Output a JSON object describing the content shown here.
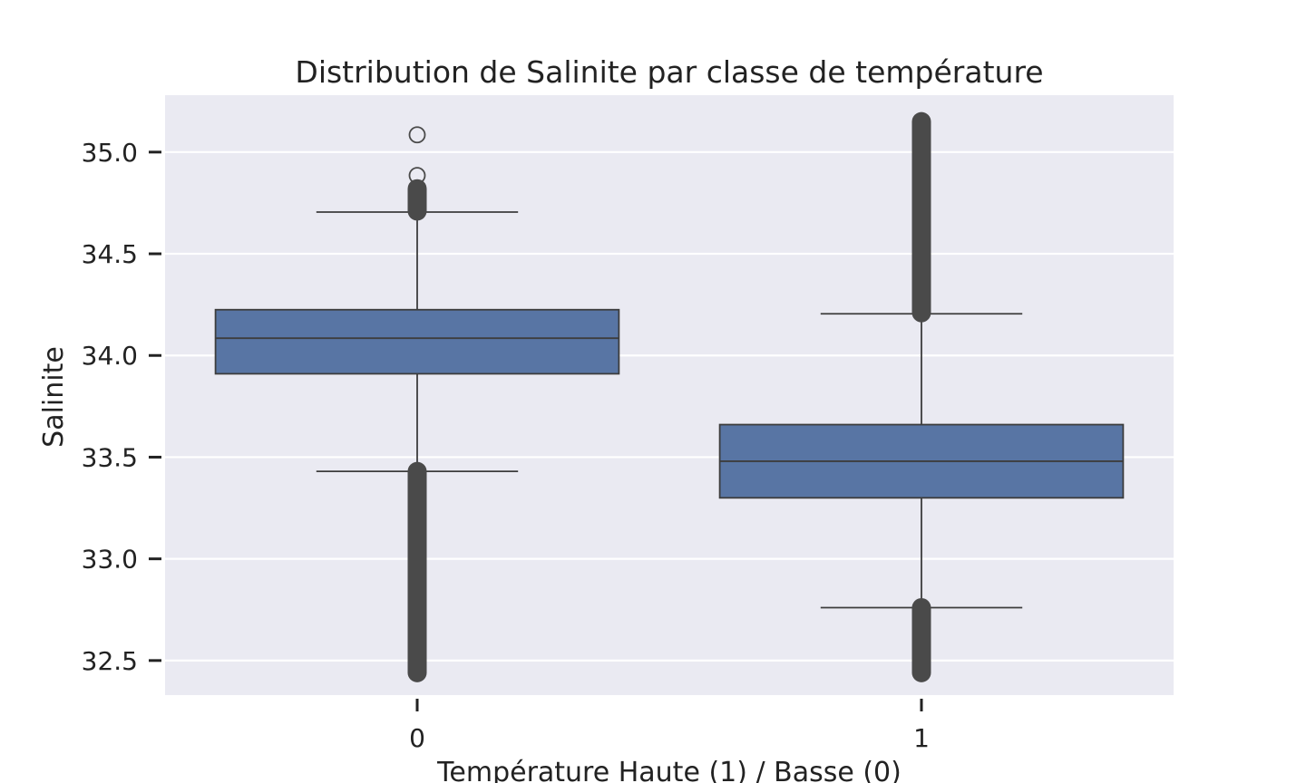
{
  "chart_data": {
    "type": "boxplot",
    "title": "Distribution de Salinite par classe de température",
    "xlabel": "Température Haute (1) / Basse (0)",
    "ylabel": "Salinite",
    "categories": [
      "0",
      "1"
    ],
    "ylim": [
      32.33,
      35.28
    ],
    "yticks": [
      32.5,
      33.0,
      33.5,
      34.0,
      34.5,
      35.0
    ],
    "ytick_labels": [
      "32.5",
      "33.0",
      "33.5",
      "34.0",
      "34.5",
      "35.0"
    ],
    "grid": true,
    "boxes": [
      {
        "category": "0",
        "q1": 33.91,
        "median": 34.085,
        "q3": 34.225,
        "whisker_low": 33.43,
        "whisker_high": 34.705,
        "outliers_high_range": [
          34.71,
          34.82
        ],
        "outliers_low_range": [
          32.44,
          33.43
        ],
        "outliers_points": [
          34.885,
          35.085
        ]
      },
      {
        "category": "1",
        "q1": 33.3,
        "median": 33.48,
        "q3": 33.66,
        "whisker_low": 32.76,
        "whisker_high": 34.205,
        "outliers_high_range": [
          34.21,
          35.15
        ],
        "outliers_low_range": [
          32.44,
          32.76
        ],
        "outliers_points": []
      }
    ],
    "colors": {
      "box_fill": "#5875a4",
      "line": "#3d3d3d",
      "outlier": "#4a4a4a",
      "background": "#eaeaf2",
      "grid": "#ffffff"
    }
  }
}
